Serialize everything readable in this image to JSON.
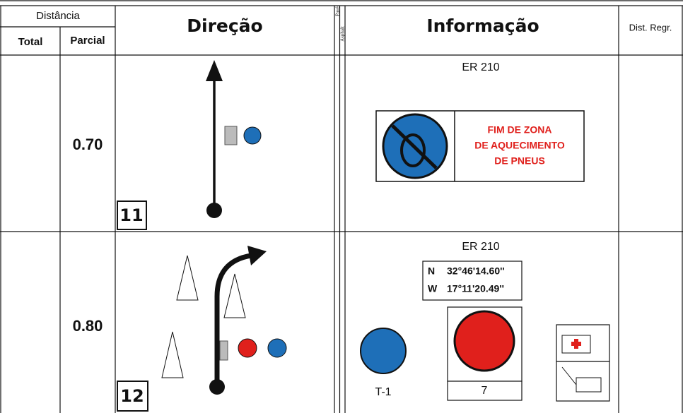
{
  "header": {
    "distance": "Distância",
    "total": "Total",
    "partial": "Parcial",
    "direction": "Direção",
    "pave": "Pavé",
    "asphalt": "Asphalt",
    "information": "Informação",
    "dist_regr": "Dist. Regr."
  },
  "rows": [
    {
      "partial": "0.70",
      "number": "11",
      "road": "ER 210",
      "sign_lines": [
        "FIM DE ZONA",
        "DE AQUECIMENTO",
        "DE PNEUS"
      ]
    },
    {
      "partial": "0.80",
      "number": "12",
      "road": "ER 210",
      "coords": [
        {
          "dir": "N",
          "value": "32°46'14.60''"
        },
        {
          "dir": "W",
          "value": "17°11'20.49''"
        }
      ],
      "sign_code": "T-1",
      "count": "7"
    }
  ]
}
